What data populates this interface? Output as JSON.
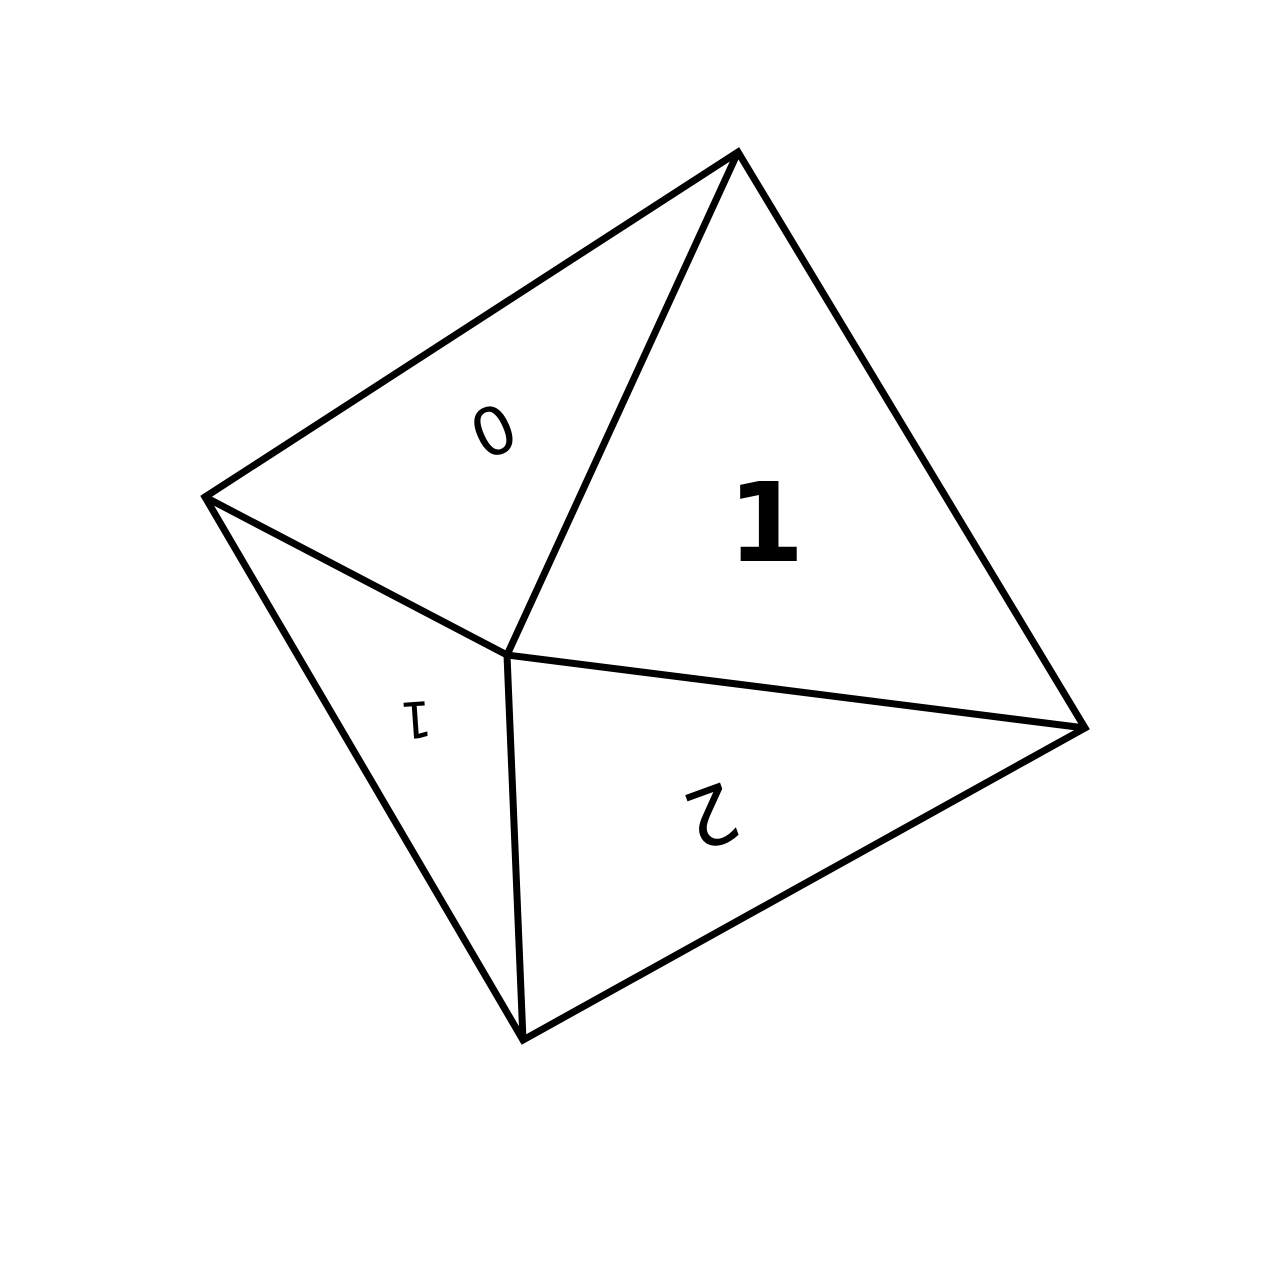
{
  "diagram": {
    "faces": [
      {
        "id": "face-top-left",
        "label": "0"
      },
      {
        "id": "face-top-right",
        "label": "1"
      },
      {
        "id": "face-bottom-left",
        "label": "1"
      },
      {
        "id": "face-bottom-right",
        "label": "2"
      }
    ],
    "stroke_color": "#000000",
    "background_color": "#ffffff"
  }
}
